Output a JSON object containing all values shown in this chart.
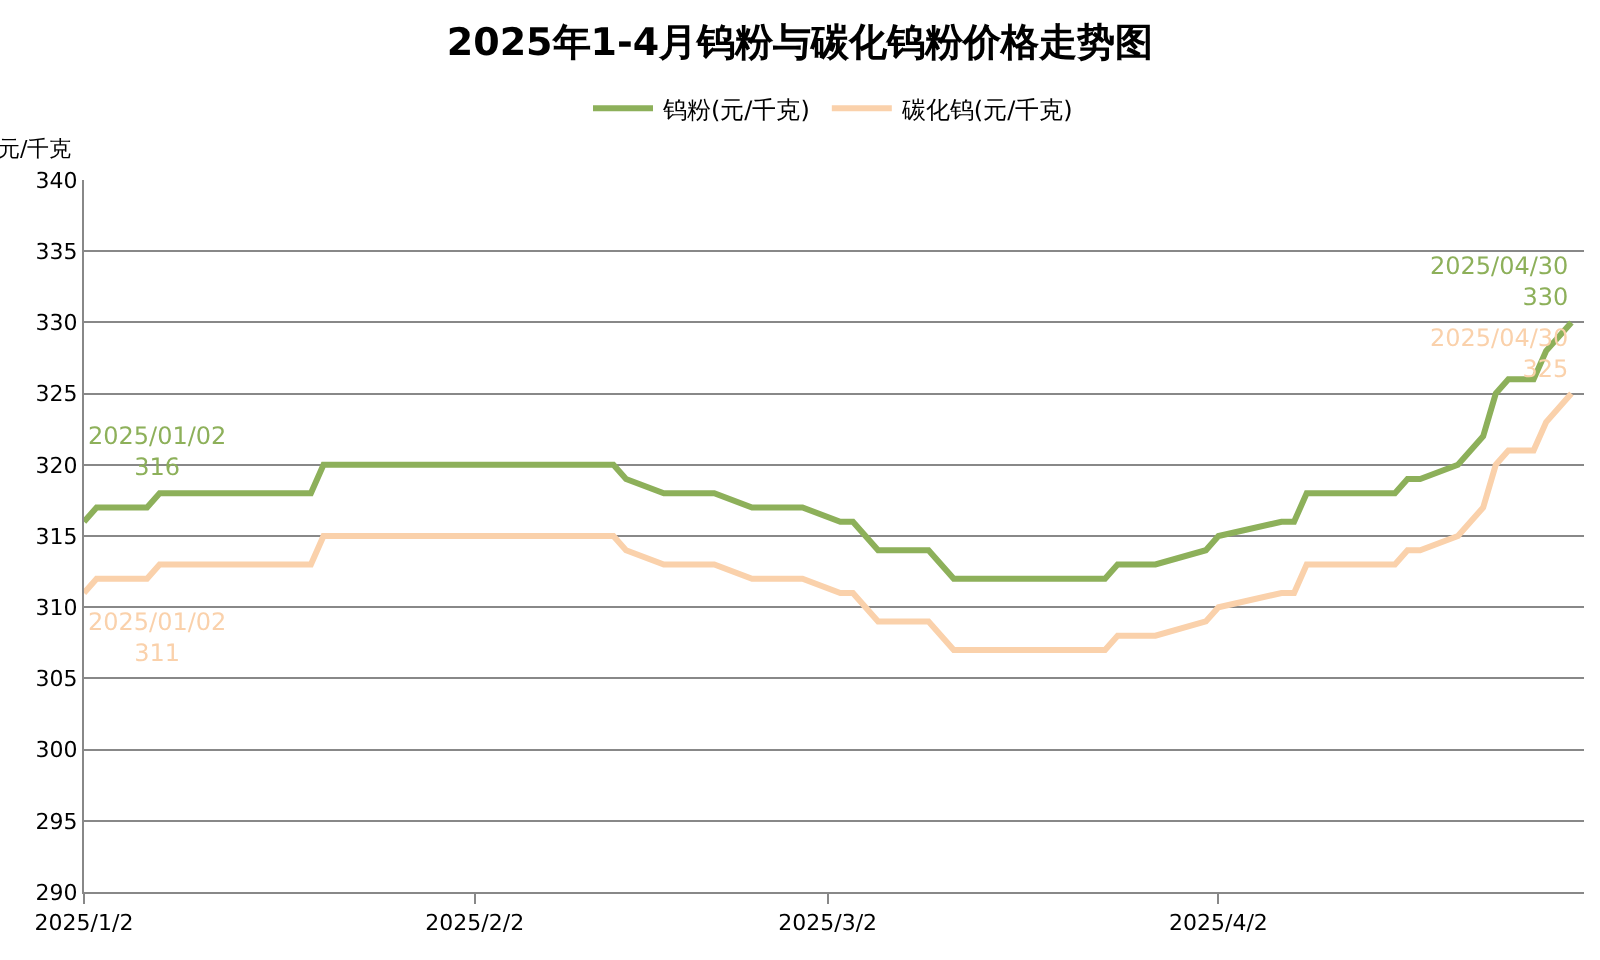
{
  "chart_data": {
    "type": "line",
    "title": "2025年1-4月钨粉与碳化钨粉价格走势图",
    "ylabel": "元/千克",
    "xlim": [
      "2025-01-02",
      "2025-05-01"
    ],
    "xticks": [
      {
        "value": "2025-01-02",
        "label": "2025/1/2"
      },
      {
        "value": "2025-02-02",
        "label": "2025/2/2"
      },
      {
        "value": "2025-03-02",
        "label": "2025/3/2"
      },
      {
        "value": "2025-04-02",
        "label": "2025/4/2"
      }
    ],
    "ylim": [
      290,
      340
    ],
    "yticks": [
      290,
      295,
      300,
      305,
      310,
      315,
      320,
      325,
      330,
      335,
      340
    ],
    "grid": "y",
    "legend": "top",
    "marker": "none",
    "line_style": "solid",
    "series": [
      {
        "name": "钨粉(元/千克)",
        "color": "#8db05a",
        "x": [
          "2025-01-02",
          "2025-01-03",
          "2025-01-07",
          "2025-01-08",
          "2025-01-20",
          "2025-01-21",
          "2025-02-13",
          "2025-02-14",
          "2025-02-17",
          "2025-02-21",
          "2025-02-24",
          "2025-02-28",
          "2025-03-03",
          "2025-03-04",
          "2025-03-06",
          "2025-03-10",
          "2025-03-12",
          "2025-03-24",
          "2025-03-25",
          "2025-03-28",
          "2025-04-01",
          "2025-04-02",
          "2025-04-07",
          "2025-04-08",
          "2025-04-09",
          "2025-04-16",
          "2025-04-17",
          "2025-04-18",
          "2025-04-21",
          "2025-04-23",
          "2025-04-24",
          "2025-04-25",
          "2025-04-27",
          "2025-04-28",
          "2025-04-30"
        ],
        "values": [
          316,
          317,
          317,
          318,
          318,
          320,
          320,
          319,
          318,
          318,
          317,
          317,
          316,
          316,
          314,
          314,
          312,
          312,
          313,
          313,
          314,
          315,
          316,
          316,
          318,
          318,
          319,
          319,
          320,
          322,
          325,
          326,
          326,
          328,
          330
        ]
      },
      {
        "name": "碳化钨(元/千克)",
        "color": "#fad1ab",
        "x": [
          "2025-01-02",
          "2025-01-03",
          "2025-01-07",
          "2025-01-08",
          "2025-01-20",
          "2025-01-21",
          "2025-02-13",
          "2025-02-14",
          "2025-02-17",
          "2025-02-21",
          "2025-02-24",
          "2025-02-28",
          "2025-03-03",
          "2025-03-04",
          "2025-03-06",
          "2025-03-10",
          "2025-03-12",
          "2025-03-24",
          "2025-03-25",
          "2025-03-28",
          "2025-04-01",
          "2025-04-02",
          "2025-04-07",
          "2025-04-08",
          "2025-04-09",
          "2025-04-16",
          "2025-04-17",
          "2025-04-18",
          "2025-04-21",
          "2025-04-23",
          "2025-04-24",
          "2025-04-25",
          "2025-04-27",
          "2025-04-28",
          "2025-04-30"
        ],
        "values": [
          311,
          312,
          312,
          313,
          313,
          315,
          315,
          314,
          313,
          313,
          312,
          312,
          311,
          311,
          309,
          309,
          307,
          307,
          308,
          308,
          309,
          310,
          311,
          311,
          313,
          313,
          314,
          314,
          315,
          317,
          320,
          321,
          321,
          323,
          325
        ]
      }
    ],
    "annotations": [
      {
        "text": "2025/01/02\n316",
        "x": "2025-01-02",
        "y": 316
      },
      {
        "text": "2025/01/02\n311",
        "x": "2025-01-02",
        "y": 311
      },
      {
        "text": "2025/04/30\n330",
        "x": "2025-04-30",
        "y": 330
      },
      {
        "text": "2025/04/30\n325",
        "x": "2025-04-30",
        "y": 325
      }
    ]
  }
}
